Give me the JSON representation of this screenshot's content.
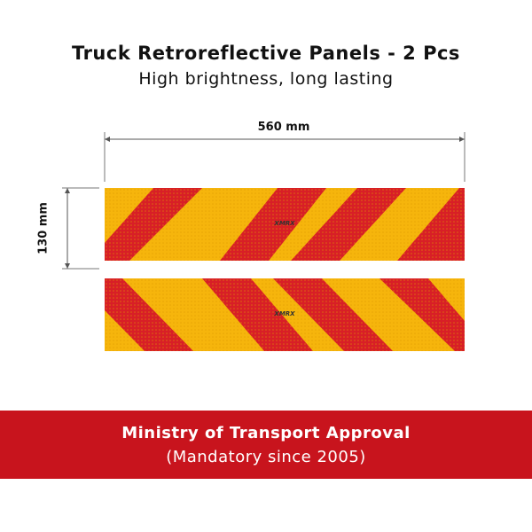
{
  "header": {
    "title": "Truck Retroreflective Panels - 2 Pcs",
    "subtitle": "High brightness, long lasting"
  },
  "dimensions": {
    "width_label": "560 mm",
    "height_label": "130 mm"
  },
  "panels": {
    "count": 2,
    "stripe_color": "#d81f26",
    "base_color": "#f6b50c",
    "logo_text": "XMRX"
  },
  "banner": {
    "title": "Ministry of Transport Approval",
    "subtitle": "(Mandatory since 2005)",
    "color": "#c8141d"
  }
}
